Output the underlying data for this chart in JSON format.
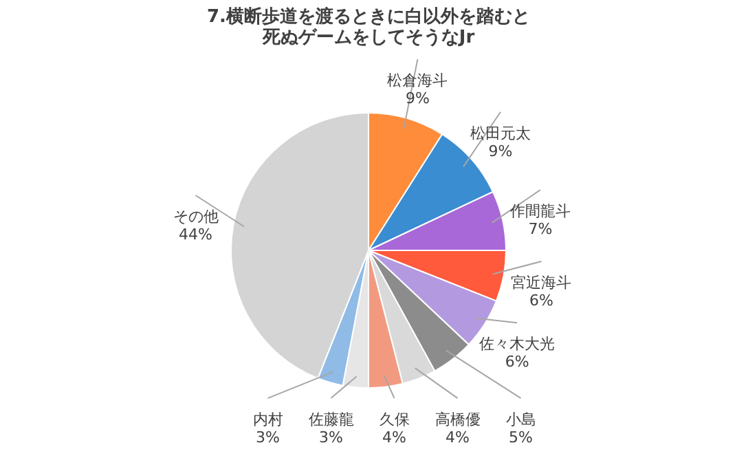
{
  "chart_data": {
    "type": "pie",
    "title": "7.横断歩道を渡るときに白以外を踏むと死ぬゲームをしてそうなJr",
    "categories": [
      "松倉海斗",
      "松田元太",
      "作間龍斗",
      "宮近海斗",
      "佐々木大光",
      "小島",
      "高橋優",
      "久保",
      "佐藤龍",
      "内村",
      "その他"
    ],
    "values": [
      9,
      9,
      7,
      6,
      6,
      5,
      4,
      4,
      3,
      3,
      44
    ],
    "value_labels": [
      "9%",
      "9%",
      "7%",
      "6%",
      "6%",
      "5%",
      "4%",
      "4%",
      "3%",
      "3%",
      "44%"
    ],
    "colors": [
      "#ff8c3a",
      "#3a8dd0",
      "#a868d8",
      "#ff5a3c",
      "#b39ae0",
      "#8c8c8c",
      "#d9d9d9",
      "#f29a80",
      "#e6e6e6",
      "#8fbbe6",
      "#d4d4d4"
    ],
    "legend": false
  }
}
